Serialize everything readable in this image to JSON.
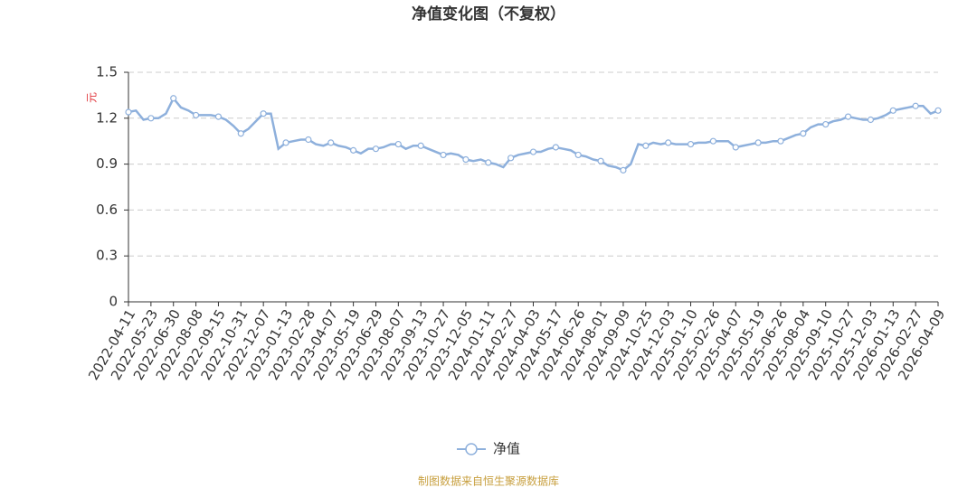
{
  "chart_data": {
    "type": "line",
    "title": "净值变化图（不复权）",
    "y_label": "元",
    "source": "制图数据来自恒生聚源数据库",
    "categories": [
      "2022-04-11",
      null,
      null,
      "2022-05-23",
      null,
      null,
      "2022-06-30",
      null,
      null,
      "2022-08-08",
      null,
      null,
      "2022-09-15",
      null,
      null,
      "2022-10-31",
      null,
      null,
      "2022-12-07",
      null,
      null,
      "2023-01-13",
      null,
      null,
      "2023-02-28",
      null,
      null,
      "2023-04-07",
      null,
      null,
      "2023-05-19",
      null,
      null,
      "2023-06-29",
      null,
      null,
      "2023-08-07",
      null,
      null,
      "2023-09-13",
      null,
      null,
      "2023-10-27",
      null,
      null,
      "2023-12-05",
      null,
      null,
      "2024-01-11",
      null,
      null,
      "2024-02-27",
      null,
      null,
      "2024-04-03",
      null,
      null,
      "2024-05-17",
      null,
      null,
      "2024-06-26",
      null,
      null,
      "2024-08-01",
      null,
      null,
      "2024-09-09",
      null,
      null,
      "2024-10-25",
      null,
      null,
      "2024-12-03",
      null,
      null,
      "2025-01-10",
      null,
      null,
      "2025-02-26",
      null,
      null,
      "2025-04-07",
      null,
      null,
      "2025-05-19",
      null,
      null,
      "2025-06-26",
      null,
      null,
      "2025-08-04",
      null,
      null,
      "2025-09-10",
      null,
      null,
      "2025-10-27",
      null,
      null,
      "2025-12-03",
      null,
      null,
      "2026-01-13",
      null,
      null,
      "2026-02-27",
      null,
      null,
      "2026-04-09"
    ],
    "series": [
      {
        "name": "净值",
        "color": "#8eb0dc",
        "values": [
          1.24,
          1.25,
          1.19,
          1.2,
          1.2,
          1.23,
          1.33,
          1.27,
          1.25,
          1.22,
          1.22,
          1.22,
          1.21,
          1.19,
          1.15,
          1.1,
          1.13,
          1.18,
          1.23,
          1.23,
          1.0,
          1.04,
          1.05,
          1.06,
          1.06,
          1.03,
          1.02,
          1.04,
          1.02,
          1.01,
          0.99,
          0.97,
          1.0,
          1.0,
          1.01,
          1.03,
          1.03,
          1.0,
          1.02,
          1.02,
          1.0,
          0.98,
          0.96,
          0.97,
          0.96,
          0.93,
          0.92,
          0.93,
          0.91,
          0.9,
          0.88,
          0.94,
          0.96,
          0.97,
          0.98,
          0.98,
          1.0,
          1.01,
          1.0,
          0.99,
          0.96,
          0.95,
          0.93,
          0.92,
          0.89,
          0.88,
          0.86,
          0.9,
          1.03,
          1.02,
          1.04,
          1.03,
          1.04,
          1.03,
          1.03,
          1.03,
          1.04,
          1.04,
          1.05,
          1.05,
          1.05,
          1.01,
          1.02,
          1.03,
          1.04,
          1.04,
          1.05,
          1.05,
          1.07,
          1.09,
          1.1,
          1.14,
          1.16,
          1.16,
          1.18,
          1.19,
          1.21,
          1.2,
          1.19,
          1.19,
          1.2,
          1.22,
          1.25,
          1.26,
          1.27,
          1.28,
          1.28,
          1.23,
          1.25
        ]
      }
    ],
    "ylim": [
      0,
      1.5
    ],
    "yticks": [
      0,
      0.3,
      0.6,
      0.9,
      1.2,
      1.5
    ],
    "grid": true
  }
}
